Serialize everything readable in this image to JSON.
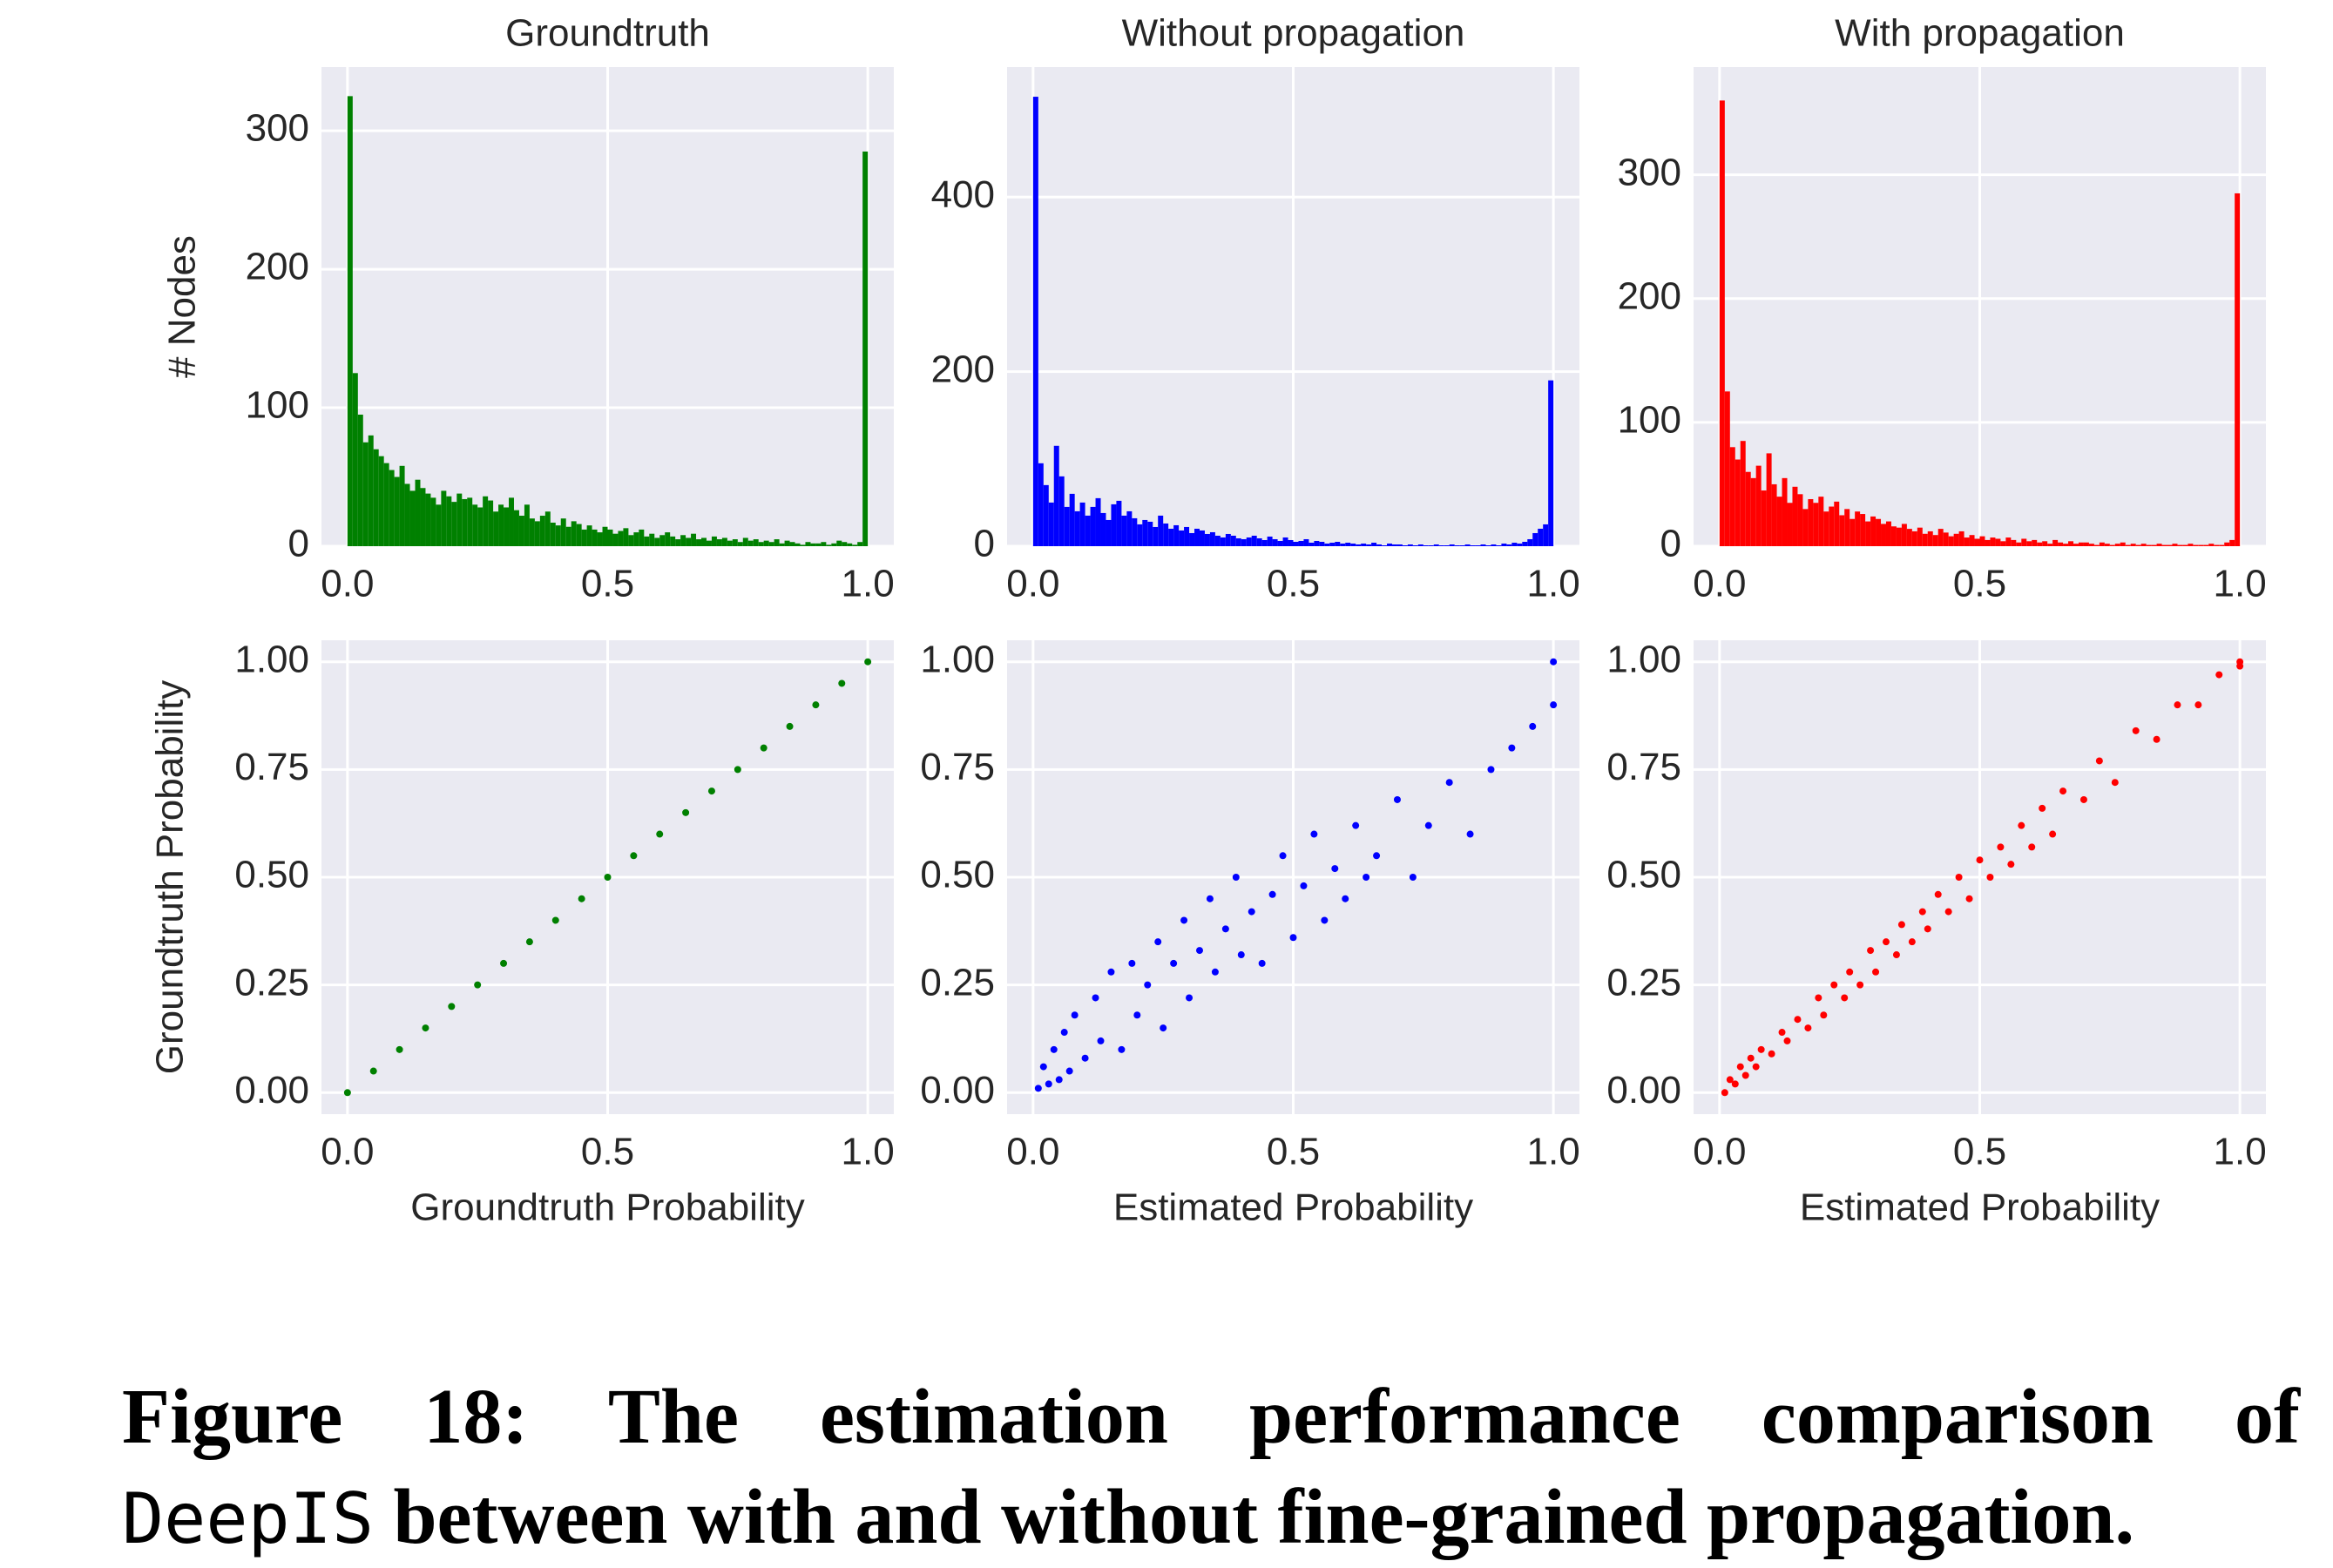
{
  "chart_data": [
    {
      "type": "histogram",
      "title": "Groundtruth",
      "ylabel": "# Nodes",
      "color": "#008000",
      "grid": true,
      "bins": [
        0,
        0.01,
        0.02,
        0.03,
        0.04,
        0.05,
        0.06,
        0.07,
        0.08,
        0.09,
        0.1,
        0.11,
        0.12,
        0.13,
        0.14,
        0.15,
        0.16,
        0.17,
        0.18,
        0.19,
        0.2,
        0.21,
        0.22,
        0.23,
        0.24,
        0.25,
        0.26,
        0.27,
        0.28,
        0.29,
        0.3,
        0.31,
        0.32,
        0.33,
        0.34,
        0.35,
        0.36,
        0.37,
        0.38,
        0.39,
        0.4,
        0.41,
        0.42,
        0.43,
        0.44,
        0.45,
        0.46,
        0.47,
        0.48,
        0.49,
        0.5,
        0.51,
        0.52,
        0.53,
        0.54,
        0.55,
        0.56,
        0.57,
        0.58,
        0.59,
        0.6,
        0.61,
        0.62,
        0.63,
        0.64,
        0.65,
        0.66,
        0.67,
        0.68,
        0.69,
        0.7,
        0.71,
        0.72,
        0.73,
        0.74,
        0.75,
        0.76,
        0.77,
        0.78,
        0.79,
        0.8,
        0.81,
        0.82,
        0.83,
        0.84,
        0.85,
        0.86,
        0.87,
        0.88,
        0.89,
        0.9,
        0.91,
        0.92,
        0.93,
        0.94,
        0.95,
        0.96,
        0.97,
        0.98,
        0.99,
        1
      ],
      "values": [
        325,
        125,
        95,
        75,
        80,
        70,
        65,
        60,
        55,
        50,
        58,
        45,
        40,
        48,
        42,
        38,
        35,
        30,
        40,
        36,
        32,
        38,
        34,
        35,
        30,
        28,
        36,
        33,
        25,
        30,
        28,
        35,
        26,
        22,
        30,
        20,
        18,
        22,
        25,
        17,
        15,
        20,
        14,
        18,
        16,
        12,
        15,
        12,
        10,
        14,
        12,
        9,
        11,
        13,
        8,
        10,
        12,
        7,
        9,
        6,
        8,
        10,
        7,
        5,
        8,
        6,
        9,
        5,
        6,
        4,
        7,
        5,
        6,
        4,
        5,
        3,
        6,
        4,
        5,
        3,
        4,
        3,
        5,
        2,
        4,
        3,
        2,
        1,
        3,
        2,
        2,
        3,
        1,
        2,
        4,
        3,
        2,
        1,
        3,
        285
      ],
      "xlim": [
        -0.05,
        1.05
      ],
      "ylim": [
        0,
        346
      ],
      "xticks": [
        {
          "value": 0,
          "label": "0.0"
        },
        0.5,
        {
          "value": 1,
          "label": "1.0"
        }
      ],
      "yticks": [
        0,
        100,
        200,
        300
      ]
    },
    {
      "type": "histogram",
      "title": "Without propagation",
      "color": "#0000ff",
      "grid": true,
      "bins": [
        0,
        0.01,
        0.02,
        0.03,
        0.04,
        0.05,
        0.06,
        0.07,
        0.08,
        0.09,
        0.1,
        0.11,
        0.12,
        0.13,
        0.14,
        0.15,
        0.16,
        0.17,
        0.18,
        0.19,
        0.2,
        0.21,
        0.22,
        0.23,
        0.24,
        0.25,
        0.26,
        0.27,
        0.28,
        0.29,
        0.3,
        0.31,
        0.32,
        0.33,
        0.34,
        0.35,
        0.36,
        0.37,
        0.38,
        0.39,
        0.4,
        0.41,
        0.42,
        0.43,
        0.44,
        0.45,
        0.46,
        0.47,
        0.48,
        0.49,
        0.5,
        0.51,
        0.52,
        0.53,
        0.54,
        0.55,
        0.56,
        0.57,
        0.58,
        0.59,
        0.6,
        0.61,
        0.62,
        0.63,
        0.64,
        0.65,
        0.66,
        0.67,
        0.68,
        0.69,
        0.7,
        0.71,
        0.72,
        0.73,
        0.74,
        0.75,
        0.76,
        0.77,
        0.78,
        0.79,
        0.8,
        0.81,
        0.82,
        0.83,
        0.84,
        0.85,
        0.86,
        0.87,
        0.88,
        0.89,
        0.9,
        0.91,
        0.92,
        0.93,
        0.94,
        0.95,
        0.96,
        0.97,
        0.98,
        0.99,
        1
      ],
      "values": [
        515,
        95,
        70,
        50,
        115,
        80,
        45,
        60,
        40,
        50,
        35,
        45,
        55,
        38,
        30,
        48,
        52,
        35,
        40,
        32,
        25,
        30,
        28,
        22,
        35,
        26,
        20,
        24,
        18,
        22,
        15,
        20,
        18,
        14,
        16,
        12,
        10,
        14,
        12,
        9,
        8,
        10,
        12,
        9,
        7,
        11,
        8,
        6,
        10,
        7,
        5,
        6,
        8,
        4,
        6,
        5,
        3,
        4,
        5,
        3,
        4,
        3,
        2,
        3,
        2,
        4,
        2,
        1,
        3,
        2,
        2,
        1,
        2,
        1,
        2,
        1,
        1,
        2,
        1,
        1,
        2,
        1,
        1,
        2,
        1,
        1,
        2,
        1,
        2,
        1,
        3,
        2,
        4,
        3,
        5,
        8,
        15,
        20,
        25,
        190
      ],
      "xlim": [
        -0.05,
        1.05
      ],
      "ylim": [
        0,
        549
      ],
      "xticks": [
        {
          "value": 0,
          "label": "0.0"
        },
        0.5,
        {
          "value": 1,
          "label": "1.0"
        }
      ],
      "yticks": [
        0,
        200,
        400
      ]
    },
    {
      "type": "histogram",
      "title": "With propagation",
      "color": "#ff0000",
      "grid": true,
      "bins": [
        0,
        0.01,
        0.02,
        0.03,
        0.04,
        0.05,
        0.06,
        0.07,
        0.08,
        0.09,
        0.1,
        0.11,
        0.12,
        0.13,
        0.14,
        0.15,
        0.16,
        0.17,
        0.18,
        0.19,
        0.2,
        0.21,
        0.22,
        0.23,
        0.24,
        0.25,
        0.26,
        0.27,
        0.28,
        0.29,
        0.3,
        0.31,
        0.32,
        0.33,
        0.34,
        0.35,
        0.36,
        0.37,
        0.38,
        0.39,
        0.4,
        0.41,
        0.42,
        0.43,
        0.44,
        0.45,
        0.46,
        0.47,
        0.48,
        0.49,
        0.5,
        0.51,
        0.52,
        0.53,
        0.54,
        0.55,
        0.56,
        0.57,
        0.58,
        0.59,
        0.6,
        0.61,
        0.62,
        0.63,
        0.64,
        0.65,
        0.66,
        0.67,
        0.68,
        0.69,
        0.7,
        0.71,
        0.72,
        0.73,
        0.74,
        0.75,
        0.76,
        0.77,
        0.78,
        0.79,
        0.8,
        0.81,
        0.82,
        0.83,
        0.84,
        0.85,
        0.86,
        0.87,
        0.88,
        0.89,
        0.9,
        0.91,
        0.92,
        0.93,
        0.94,
        0.95,
        0.96,
        0.97,
        0.98,
        0.99,
        1
      ],
      "values": [
        360,
        125,
        80,
        70,
        85,
        60,
        55,
        65,
        45,
        75,
        50,
        40,
        55,
        35,
        48,
        42,
        30,
        38,
        35,
        40,
        28,
        32,
        36,
        25,
        30,
        22,
        28,
        26,
        20,
        24,
        22,
        18,
        20,
        16,
        15,
        18,
        14,
        12,
        15,
        10,
        12,
        9,
        14,
        11,
        8,
        10,
        12,
        7,
        9,
        6,
        8,
        5,
        7,
        6,
        4,
        7,
        5,
        3,
        6,
        4,
        5,
        3,
        4,
        2,
        5,
        3,
        2,
        4,
        2,
        3,
        3,
        2,
        1,
        3,
        2,
        1,
        2,
        3,
        1,
        2,
        1,
        2,
        1,
        1,
        2,
        1,
        1,
        2,
        1,
        1,
        2,
        1,
        1,
        1,
        2,
        1,
        1,
        3,
        5,
        285
      ],
      "xlim": [
        -0.05,
        1.05
      ],
      "ylim": [
        0,
        387
      ],
      "xticks": [
        {
          "value": 0,
          "label": "0.0"
        },
        0.5,
        {
          "value": 1,
          "label": "1.0"
        }
      ],
      "yticks": [
        0,
        100,
        200,
        300
      ]
    },
    {
      "type": "scatter",
      "xlabel": "Groundtruth Probability",
      "ylabel": "Groundtruth Probability",
      "color": "#008000",
      "grid": true,
      "x": [
        0,
        0.05,
        0.1,
        0.15,
        0.2,
        0.25,
        0.3,
        0.35,
        0.4,
        0.45,
        0.5,
        0.55,
        0.6,
        0.65,
        0.7,
        0.75,
        0.8,
        0.85,
        0.9,
        0.95,
        1
      ],
      "y": [
        0,
        0.05,
        0.1,
        0.15,
        0.2,
        0.25,
        0.3,
        0.35,
        0.4,
        0.45,
        0.5,
        0.55,
        0.6,
        0.65,
        0.7,
        0.75,
        0.8,
        0.85,
        0.9,
        0.95,
        1
      ],
      "xlim": [
        -0.05,
        1.05
      ],
      "ylim": [
        -0.05,
        1.05
      ],
      "xticks": [
        {
          "value": 0,
          "label": "0.0"
        },
        0.5,
        {
          "value": 1,
          "label": "1.0"
        }
      ],
      "yticks": [
        {
          "value": 0,
          "label": "0.00"
        },
        0.25,
        {
          "value": 0.5,
          "label": "0.50"
        },
        0.75,
        {
          "value": 1,
          "label": "1.00"
        }
      ]
    },
    {
      "type": "scatter",
      "xlabel": "Estimated Probability",
      "color": "#0000ff",
      "grid": true,
      "x": [
        0.01,
        0.02,
        0.03,
        0.04,
        0.05,
        0.06,
        0.07,
        0.08,
        0.1,
        0.12,
        0.13,
        0.15,
        0.17,
        0.19,
        0.2,
        0.22,
        0.24,
        0.25,
        0.27,
        0.29,
        0.3,
        0.32,
        0.34,
        0.35,
        0.37,
        0.39,
        0.4,
        0.42,
        0.44,
        0.46,
        0.48,
        0.5,
        0.52,
        0.54,
        0.56,
        0.58,
        0.6,
        0.62,
        0.64,
        0.66,
        0.7,
        0.73,
        0.76,
        0.8,
        0.84,
        0.88,
        0.92,
        0.96,
        1,
        1
      ],
      "y": [
        0.01,
        0.06,
        0.02,
        0.1,
        0.03,
        0.14,
        0.05,
        0.18,
        0.08,
        0.22,
        0.12,
        0.28,
        0.1,
        0.3,
        0.18,
        0.25,
        0.35,
        0.15,
        0.3,
        0.4,
        0.22,
        0.33,
        0.45,
        0.28,
        0.38,
        0.5,
        0.32,
        0.42,
        0.3,
        0.46,
        0.55,
        0.36,
        0.48,
        0.6,
        0.4,
        0.52,
        0.45,
        0.62,
        0.5,
        0.55,
        0.68,
        0.5,
        0.62,
        0.72,
        0.6,
        0.75,
        0.8,
        0.85,
        0.9,
        1
      ],
      "xlim": [
        -0.05,
        1.05
      ],
      "ylim": [
        -0.05,
        1.05
      ],
      "xticks": [
        {
          "value": 0,
          "label": "0.0"
        },
        0.5,
        {
          "value": 1,
          "label": "1.0"
        }
      ],
      "yticks": [
        {
          "value": 0,
          "label": "0.00"
        },
        0.25,
        {
          "value": 0.5,
          "label": "0.50"
        },
        0.75,
        {
          "value": 1,
          "label": "1.00"
        }
      ]
    },
    {
      "type": "scatter",
      "xlabel": "Estimated Probability",
      "color": "#ff0000",
      "grid": true,
      "x": [
        0.01,
        0.02,
        0.03,
        0.04,
        0.05,
        0.06,
        0.07,
        0.08,
        0.1,
        0.12,
        0.13,
        0.15,
        0.17,
        0.19,
        0.2,
        0.22,
        0.24,
        0.25,
        0.27,
        0.29,
        0.3,
        0.32,
        0.34,
        0.35,
        0.37,
        0.39,
        0.4,
        0.42,
        0.44,
        0.46,
        0.48,
        0.5,
        0.52,
        0.54,
        0.56,
        0.58,
        0.6,
        0.62,
        0.64,
        0.66,
        0.7,
        0.73,
        0.76,
        0.8,
        0.84,
        0.88,
        0.92,
        0.96,
        1,
        1
      ],
      "y": [
        0,
        0.03,
        0.02,
        0.06,
        0.04,
        0.08,
        0.06,
        0.1,
        0.09,
        0.14,
        0.12,
        0.17,
        0.15,
        0.22,
        0.18,
        0.25,
        0.22,
        0.28,
        0.25,
        0.33,
        0.28,
        0.35,
        0.32,
        0.39,
        0.35,
        0.42,
        0.38,
        0.46,
        0.42,
        0.5,
        0.45,
        0.54,
        0.5,
        0.57,
        0.53,
        0.62,
        0.57,
        0.66,
        0.6,
        0.7,
        0.68,
        0.77,
        0.72,
        0.84,
        0.82,
        0.9,
        0.9,
        0.97,
        1,
        0.99
      ],
      "xlim": [
        -0.05,
        1.05
      ],
      "ylim": [
        -0.05,
        1.05
      ],
      "xticks": [
        {
          "value": 0,
          "label": "0.0"
        },
        0.5,
        {
          "value": 1,
          "label": "1.0"
        }
      ],
      "yticks": [
        {
          "value": 0,
          "label": "0.00"
        },
        0.25,
        {
          "value": 0.5,
          "label": "0.50"
        },
        0.75,
        {
          "value": 1,
          "label": "1.00"
        }
      ]
    }
  ],
  "caption": {
    "label": "Figure 18:",
    "text1": "The estimation performance comparison of",
    "code": "DeepIS",
    "text2": "between with and without fine-grained propagation."
  }
}
